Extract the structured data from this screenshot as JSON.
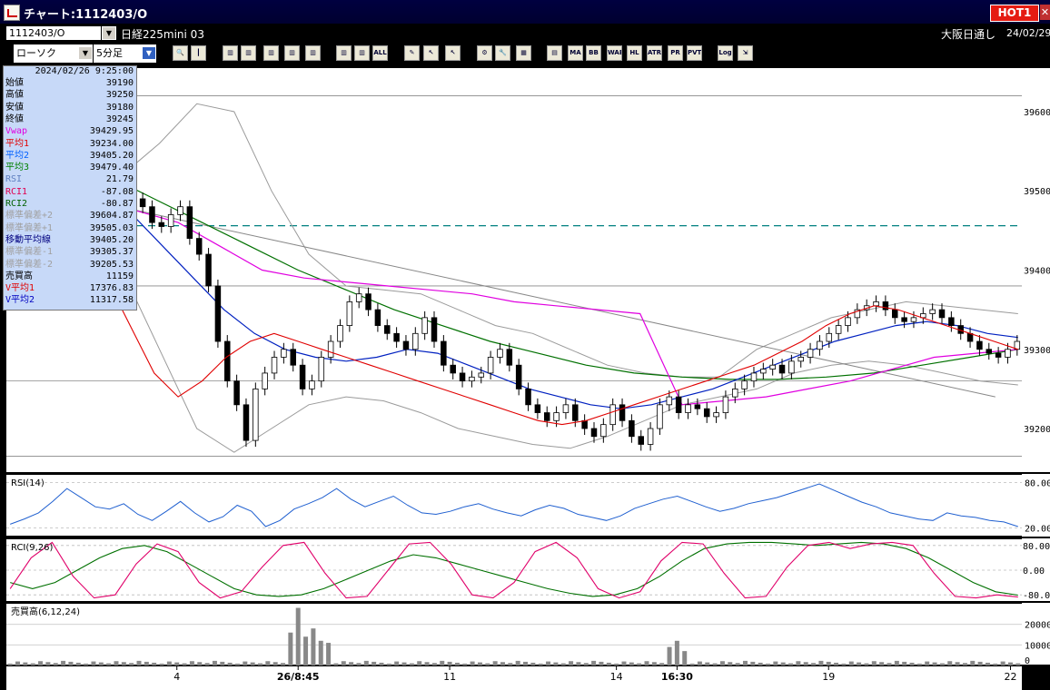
{
  "window": {
    "title": "チャート:1112403/O",
    "hot_label": "HOT1",
    "close_label": "✕"
  },
  "header": {
    "code": "1112403/O",
    "instrument": "日経225mini 03",
    "market": "大阪日通し",
    "date": "24/02/29"
  },
  "toolbar": {
    "chart_type": "ローソク",
    "interval": "5分足",
    "buttons": [
      "zoom-icon",
      "cursor-icon",
      "chart-icon",
      "chart-icon",
      "chart-icon",
      "chart-icon",
      "chart-icon",
      "chart-icon",
      "chart-icon",
      "ALL",
      "pen-icon",
      "arrow-icon",
      "arrow-icon",
      "gear-icon",
      "wrench-icon",
      "palette-icon",
      "grid-icon",
      "MA",
      "BB",
      "WAE",
      "HL",
      "ATR",
      "PR",
      "PVT",
      "Log",
      "export-icon"
    ]
  },
  "info_panel": {
    "datetime": "2024/02/26  9:25:00",
    "rows": [
      {
        "label": "始値",
        "value": "39190",
        "color": "#000000"
      },
      {
        "label": "高値",
        "value": "39250",
        "color": "#000000"
      },
      {
        "label": "安値",
        "value": "39180",
        "color": "#000000"
      },
      {
        "label": "終値",
        "value": "39245",
        "color": "#000000"
      },
      {
        "label": "Vwap",
        "value": "39429.95",
        "color": "#e000e0"
      },
      {
        "label": "平均1",
        "value": "39234.00",
        "color": "#e00000"
      },
      {
        "label": "平均2",
        "value": "39405.20",
        "color": "#0060ff"
      },
      {
        "label": "平均3",
        "value": "39479.40",
        "color": "#008000"
      },
      {
        "label": "RSI",
        "value": "21.79",
        "color": "#6080c0"
      },
      {
        "label": "RCI1",
        "value": "-87.08",
        "color": "#e00050"
      },
      {
        "label": "RCI2",
        "value": "-80.87",
        "color": "#006000"
      },
      {
        "label": "標準偏差+2",
        "value": "39604.87",
        "color": "#a0a0a0"
      },
      {
        "label": "標準偏差+1",
        "value": "39505.03",
        "color": "#a0a0a0"
      },
      {
        "label": "移動平均線",
        "value": "39405.20",
        "color": "#000080"
      },
      {
        "label": "標準偏差-1",
        "value": "39305.37",
        "color": "#a0a0a0"
      },
      {
        "label": "標準偏差-2",
        "value": "39205.53",
        "color": "#a0a0a0"
      },
      {
        "label": "売買高",
        "value": "11159",
        "color": "#000000"
      },
      {
        "label": "V平均1",
        "value": "17376.83",
        "color": "#e00000"
      },
      {
        "label": "V平均2",
        "value": "11317.58",
        "color": "#0000c0"
      }
    ]
  },
  "chart_data": {
    "type": "line",
    "price": {
      "ylim": [
        39145,
        39655
      ],
      "ticks": [
        "39600",
        "39500",
        "39400",
        "39300",
        "39200"
      ],
      "tick_values": [
        39600,
        39500,
        39400,
        39300,
        39200
      ],
      "dashed_level": 39456,
      "hlines": [
        39620,
        39380,
        39260,
        39165
      ]
    },
    "xaxis": {
      "ticks": [
        {
          "label": "4",
          "bar": 22
        },
        {
          "label": "26/8:45",
          "bar": 38
        },
        {
          "label": "11",
          "bar": 58
        },
        {
          "label": "14",
          "bar": 80
        },
        {
          "label": "16:30",
          "bar": 88
        },
        {
          "label": "19",
          "bar": 108
        },
        {
          "label": "22",
          "bar": 132
        }
      ],
      "num_bars": 134
    },
    "close": [
      39540,
      39535,
      39530,
      39545,
      39525,
      39520,
      39480,
      39450,
      39480,
      39500,
      39470,
      39490,
      39510,
      39490,
      39480,
      39460,
      39455,
      39470,
      39480,
      39440,
      39420,
      39380,
      39310,
      39260,
      39230,
      39185,
      39250,
      39270,
      39290,
      39300,
      39280,
      39250,
      39260,
      39290,
      39310,
      39330,
      39360,
      39370,
      39350,
      39330,
      39320,
      39310,
      39300,
      39320,
      39340,
      39310,
      39280,
      39270,
      39260,
      39265,
      39270,
      39290,
      39300,
      39280,
      39250,
      39230,
      39220,
      39210,
      39220,
      39230,
      39210,
      39200,
      39190,
      39205,
      39230,
      39210,
      39190,
      39180,
      39200,
      39230,
      39240,
      39220,
      39230,
      39225,
      39215,
      39220,
      39240,
      39250,
      39260,
      39270,
      39275,
      39280,
      39270,
      39285,
      39290,
      39300,
      39310,
      39320,
      39330,
      39340,
      39350,
      39355,
      39360,
      39350,
      39340,
      39335,
      39340,
      39345,
      39350,
      39340,
      39330,
      39320,
      39310,
      39300,
      39295,
      39290,
      39300,
      39310
    ],
    "sma_short": [
      39530,
      39500,
      39470,
      39440,
      39390,
      39330,
      39270,
      39240,
      39260,
      39290,
      39310,
      39320,
      39310,
      39300,
      39290,
      39280,
      39270,
      39260,
      39250,
      39240,
      39230,
      39220,
      39210,
      39205,
      39210,
      39220,
      39230,
      39240,
      39250,
      39260,
      39270,
      39280,
      39295,
      39310,
      39330,
      39345,
      39355,
      39350,
      39340,
      39330,
      39320,
      39310,
      39300
    ],
    "sma_mid": [
      39545,
      39530,
      39515,
      39500,
      39470,
      39430,
      39390,
      39350,
      39320,
      39300,
      39290,
      39285,
      39290,
      39300,
      39295,
      39280,
      39265,
      39250,
      39240,
      39230,
      39225,
      39230,
      39240,
      39250,
      39265,
      39280,
      39295,
      39310,
      39320,
      39330,
      39335,
      39330,
      39320,
      39315
    ],
    "sma_long": [
      39560,
      39545,
      39520,
      39490,
      39460,
      39430,
      39400,
      39375,
      39350,
      39330,
      39310,
      39295,
      39280,
      39270,
      39265,
      39262,
      39262,
      39265,
      39270,
      39280,
      39290,
      39300
    ],
    "vwap": [
      39510,
      39500,
      39485,
      39475,
      39460,
      39430,
      39400,
      39390,
      39385,
      39380,
      39375,
      39370,
      39360,
      39355,
      39350,
      39345,
      39230,
      39235,
      39240,
      39250,
      39260,
      39275,
      39290,
      39295,
      39300
    ],
    "bb_upper": [
      39580,
      39570,
      39560,
      39520,
      39560,
      39610,
      39600,
      39500,
      39420,
      39380,
      39375,
      39370,
      39350,
      39330,
      39320,
      39300,
      39280,
      39270,
      39265,
      39265,
      39300,
      39320,
      39340,
      39350,
      39360,
      39355,
      39350,
      39345
    ],
    "bb_lower": [
      39500,
      39495,
      39480,
      39400,
      39300,
      39200,
      39170,
      39200,
      39230,
      39240,
      39235,
      39220,
      39200,
      39190,
      39180,
      39175,
      39190,
      39210,
      39230,
      39240,
      39250,
      39270,
      39280,
      39285,
      39280,
      39270,
      39260,
      39255
    ],
    "trendline": {
      "from": [
        0,
        39510
      ],
      "to": [
        130,
        39240
      ]
    },
    "rsi": {
      "label": "RSI(14)",
      "ylim": [
        10,
        90
      ],
      "ticks": [
        "80.00",
        "20.00"
      ],
      "tick_values": [
        80,
        20
      ],
      "values": [
        25,
        32,
        40,
        55,
        72,
        60,
        48,
        45,
        52,
        38,
        30,
        42,
        55,
        40,
        28,
        35,
        50,
        42,
        22,
        30,
        45,
        52,
        60,
        72,
        58,
        48,
        55,
        62,
        50,
        40,
        38,
        42,
        48,
        52,
        45,
        40,
        36,
        44,
        50,
        46,
        38,
        34,
        30,
        36,
        46,
        52,
        58,
        62,
        55,
        48,
        42,
        46,
        52,
        56,
        60,
        66,
        72,
        78,
        70,
        62,
        54,
        48,
        40,
        36,
        32,
        30,
        40,
        36,
        34,
        30,
        28,
        22
      ]
    },
    "rci": {
      "label": "RCI(9,26)",
      "ylim": [
        -100,
        100
      ],
      "ticks": [
        "80.00",
        "0.00",
        "-80.00"
      ],
      "tick_values": [
        80,
        0,
        -80
      ],
      "rci1": [
        -60,
        40,
        90,
        -20,
        -90,
        -80,
        20,
        85,
        60,
        -40,
        -90,
        -70,
        10,
        80,
        90,
        -10,
        -90,
        -85,
        0,
        85,
        90,
        20,
        -80,
        -90,
        -40,
        60,
        90,
        40,
        -60,
        -90,
        -70,
        30,
        90,
        85,
        -10,
        -90,
        -85,
        10,
        80,
        90,
        70,
        85,
        90,
        80,
        -10,
        -85,
        -90,
        -80,
        -87
      ],
      "rci2": [
        -40,
        -60,
        -40,
        0,
        40,
        70,
        80,
        60,
        20,
        -20,
        -60,
        -80,
        -85,
        -80,
        -60,
        -30,
        0,
        30,
        50,
        40,
        20,
        0,
        -20,
        -40,
        -60,
        -75,
        -85,
        -80,
        -60,
        -20,
        30,
        70,
        85,
        90,
        90,
        85,
        80,
        85,
        90,
        85,
        70,
        40,
        0,
        -40,
        -70,
        -81
      ]
    },
    "volume": {
      "label": "売買高(6,12,24)",
      "ylim": [
        0,
        30000
      ],
      "ticks": [
        "20000",
        "10000",
        "0"
      ],
      "tick_values": [
        20000,
        10000,
        0
      ],
      "spikes": [
        {
          "bar": 38,
          "v": 28000
        },
        {
          "bar": 37,
          "v": 16000
        },
        {
          "bar": 39,
          "v": 14000
        },
        {
          "bar": 40,
          "v": 18000
        },
        {
          "bar": 41,
          "v": 12000
        },
        {
          "bar": 42,
          "v": 11000
        },
        {
          "bar": 88,
          "v": 12000
        },
        {
          "bar": 87,
          "v": 9000
        },
        {
          "bar": 89,
          "v": 7000
        }
      ],
      "base": 1500
    }
  }
}
